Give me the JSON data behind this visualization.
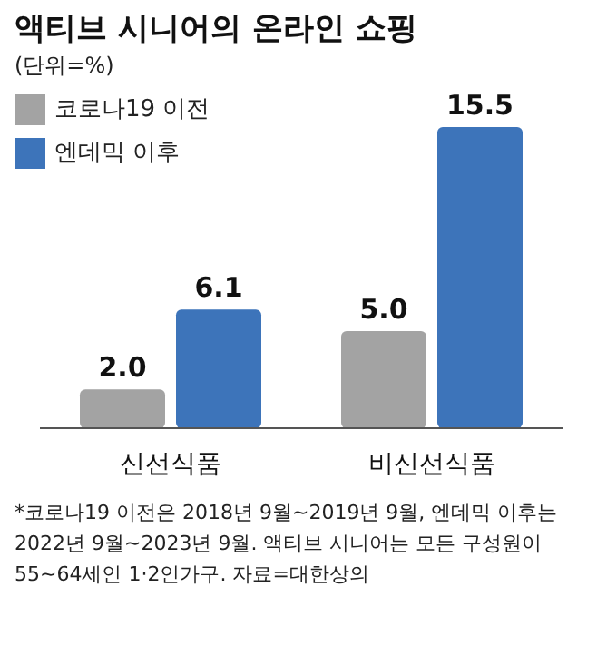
{
  "chart_data": {
    "type": "bar",
    "title": "액티브 시니어의 온라인 쇼핑",
    "subtitle": "(단위=%)",
    "categories": [
      "신선식품",
      "비신선식품"
    ],
    "series": [
      {
        "name": "코로나19 이전",
        "color": "#a3a3a3",
        "values": [
          2.0,
          5.0
        ],
        "value_labels": [
          "2.0",
          "5.0"
        ]
      },
      {
        "name": "엔데믹 이후",
        "color": "#3d74ba",
        "values": [
          6.1,
          15.5
        ],
        "value_labels": [
          "6.1",
          "15.5"
        ]
      }
    ],
    "legend": "top left",
    "annotations": [
      "*코로나19 이전은 2018년 9월~2019년 9월, 엔데믹 이후는 2022년 9월~2023년 9월. 액티브 시니어는 모든 구성원이 55~64세인 1·2인가구. 자료=대한상의"
    ]
  }
}
